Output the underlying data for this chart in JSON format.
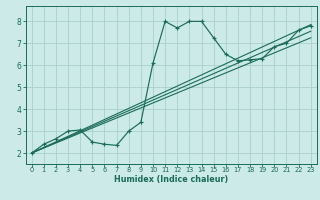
{
  "xlabel": "Humidex (Indice chaleur)",
  "background_color": "#cceae7",
  "grid_color": "#aacfcc",
  "line_color": "#1a6b5a",
  "xlim": [
    -0.5,
    23.5
  ],
  "ylim": [
    1.5,
    8.7
  ],
  "xticks": [
    0,
    1,
    2,
    3,
    4,
    5,
    6,
    7,
    8,
    9,
    10,
    11,
    12,
    13,
    14,
    15,
    16,
    17,
    18,
    19,
    20,
    21,
    22,
    23
  ],
  "yticks": [
    2,
    3,
    4,
    5,
    6,
    7,
    8
  ],
  "curve_x": [
    0,
    1,
    2,
    3,
    4,
    5,
    6,
    7,
    8,
    9,
    10,
    11,
    12,
    13,
    14,
    15,
    16,
    17,
    18,
    19,
    20,
    21,
    22,
    23
  ],
  "curve_y": [
    2.0,
    2.4,
    2.65,
    3.0,
    3.05,
    2.5,
    2.4,
    2.35,
    3.0,
    3.4,
    6.1,
    8.0,
    7.7,
    8.0,
    8.0,
    7.25,
    6.5,
    6.2,
    6.25,
    6.3,
    6.85,
    7.0,
    7.6,
    7.8
  ],
  "ref_lines": [
    {
      "x": [
        0,
        23
      ],
      "y": [
        2.0,
        7.85
      ]
    },
    {
      "x": [
        0,
        23
      ],
      "y": [
        2.0,
        7.55
      ]
    },
    {
      "x": [
        0,
        23
      ],
      "y": [
        2.0,
        7.25
      ]
    }
  ]
}
